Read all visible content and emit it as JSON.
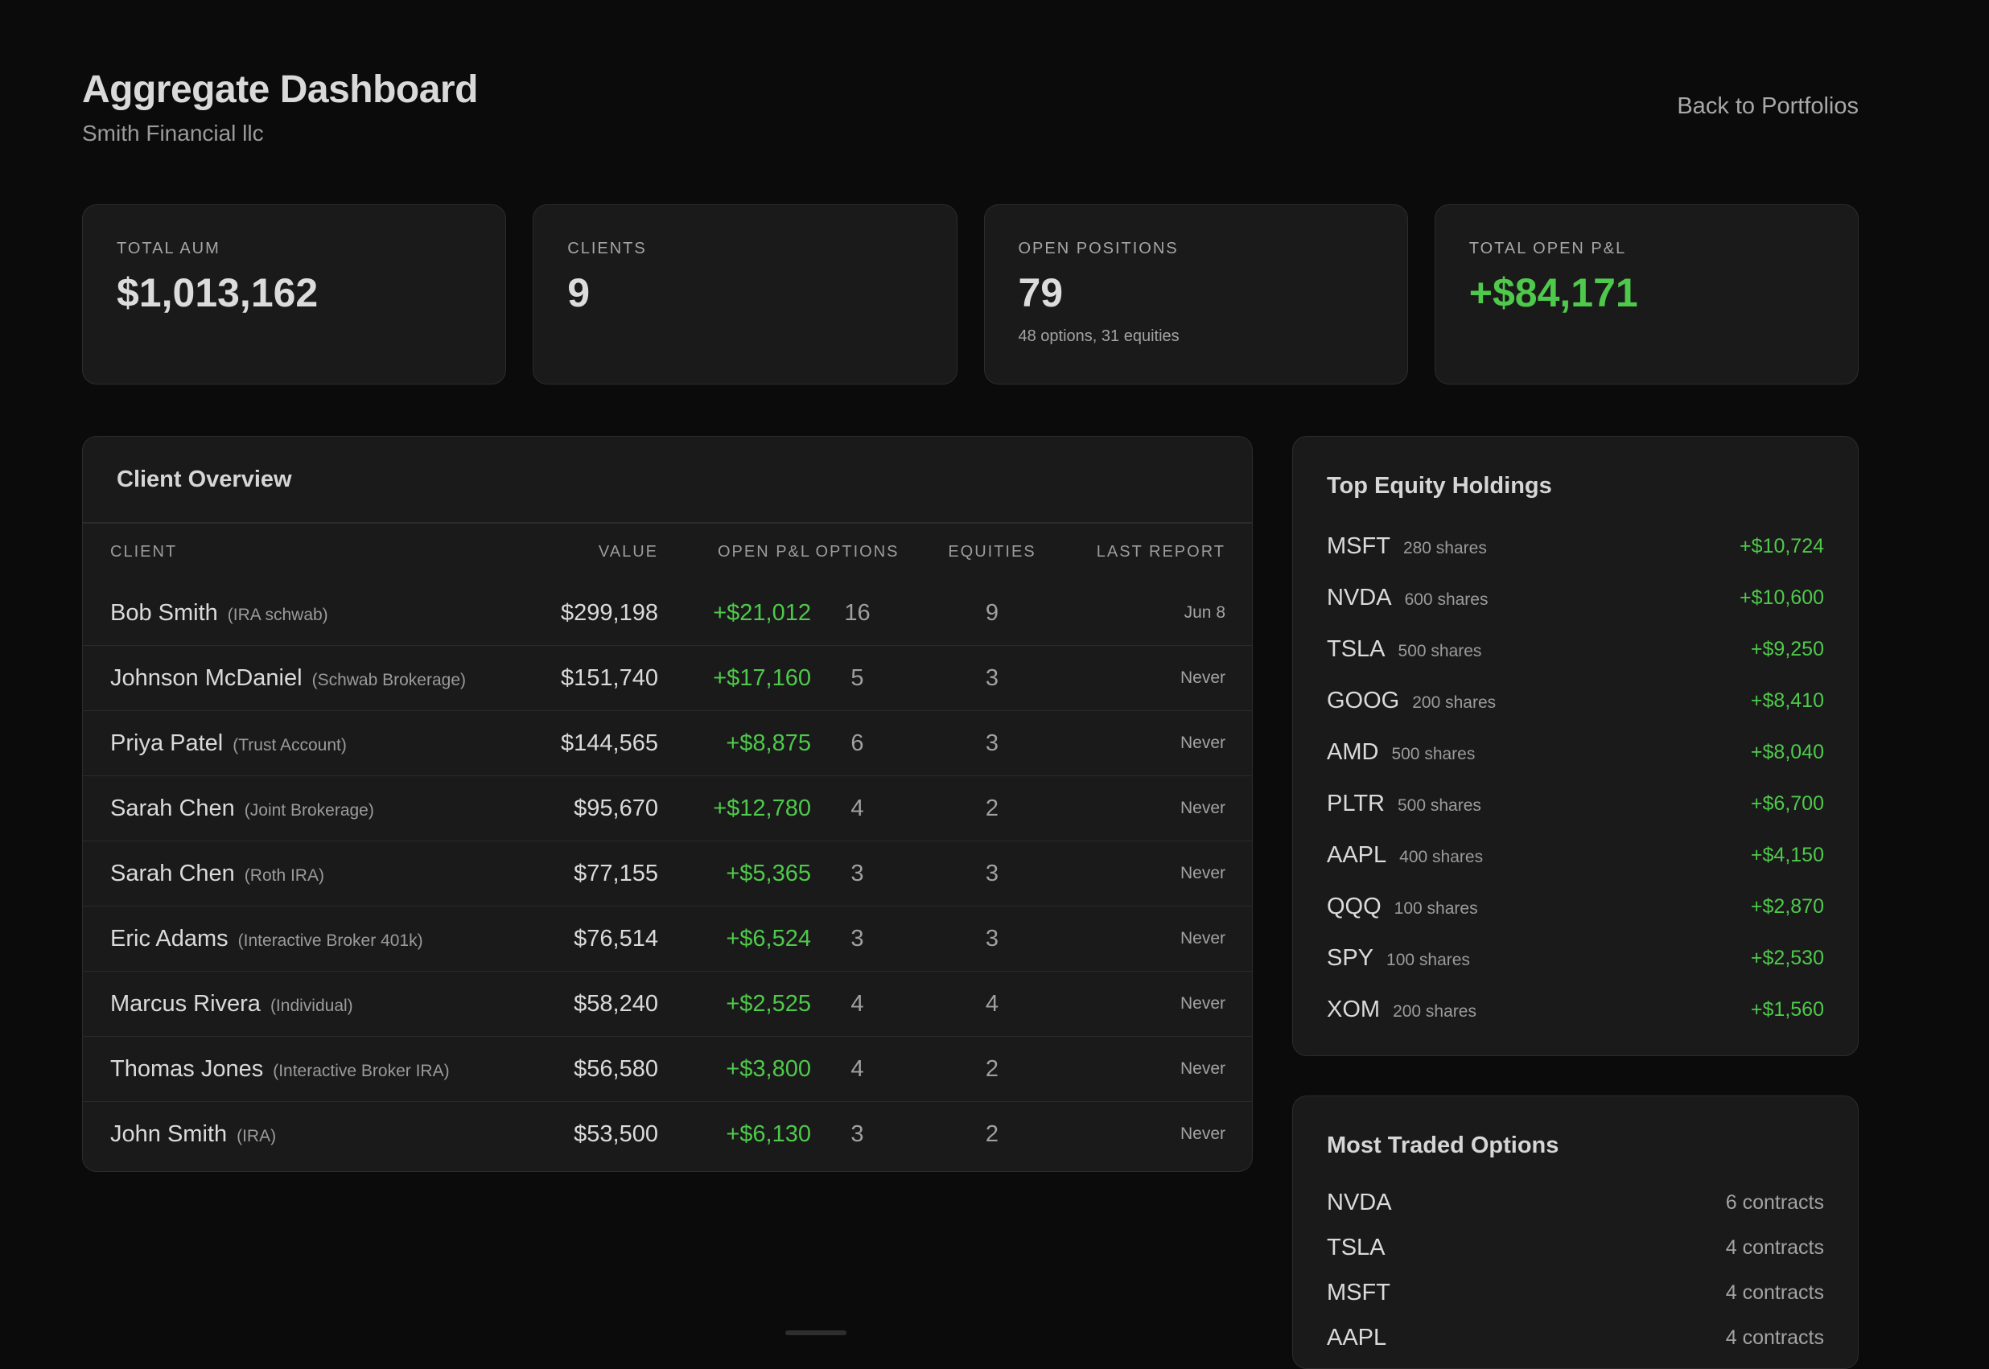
{
  "header": {
    "title": "Aggregate Dashboard",
    "subtitle": "Smith Financial llc",
    "back_link": "Back to Portfolios"
  },
  "stats": [
    {
      "label": "TOTAL AUM",
      "value": "$1,013,162",
      "sub": ""
    },
    {
      "label": "CLIENTS",
      "value": "9",
      "sub": ""
    },
    {
      "label": "OPEN POSITIONS",
      "value": "79",
      "sub": "48 options, 31 equities"
    },
    {
      "label": "TOTAL OPEN P&L",
      "value": "+$84,171",
      "sub": ""
    }
  ],
  "overview": {
    "title": "Client Overview",
    "columns": [
      "CLIENT",
      "VALUE",
      "OPEN P&L",
      "OPTIONS",
      "EQUITIES",
      "LAST REPORT"
    ],
    "rows": [
      {
        "name": "Bob Smith",
        "account": "(IRA schwab)",
        "value": "$299,198",
        "pnl": "+$21,012",
        "options": "16",
        "equities": "9",
        "last_report": "Jun 8"
      },
      {
        "name": "Johnson McDaniel",
        "account": "(Schwab Brokerage)",
        "value": "$151,740",
        "pnl": "+$17,160",
        "options": "5",
        "equities": "3",
        "last_report": "Never"
      },
      {
        "name": "Priya Patel",
        "account": "(Trust Account)",
        "value": "$144,565",
        "pnl": "+$8,875",
        "options": "6",
        "equities": "3",
        "last_report": "Never"
      },
      {
        "name": "Sarah Chen",
        "account": "(Joint Brokerage)",
        "value": "$95,670",
        "pnl": "+$12,780",
        "options": "4",
        "equities": "2",
        "last_report": "Never"
      },
      {
        "name": "Sarah Chen",
        "account": "(Roth IRA)",
        "value": "$77,155",
        "pnl": "+$5,365",
        "options": "3",
        "equities": "3",
        "last_report": "Never"
      },
      {
        "name": "Eric Adams",
        "account": "(Interactive Broker 401k)",
        "value": "$76,514",
        "pnl": "+$6,524",
        "options": "3",
        "equities": "3",
        "last_report": "Never"
      },
      {
        "name": "Marcus Rivera",
        "account": "(Individual)",
        "value": "$58,240",
        "pnl": "+$2,525",
        "options": "4",
        "equities": "4",
        "last_report": "Never"
      },
      {
        "name": "Thomas Jones",
        "account": "(Interactive Broker IRA)",
        "value": "$56,580",
        "pnl": "+$3,800",
        "options": "4",
        "equities": "2",
        "last_report": "Never"
      },
      {
        "name": "John Smith",
        "account": "(IRA)",
        "value": "$53,500",
        "pnl": "+$6,130",
        "options": "3",
        "equities": "2",
        "last_report": "Never"
      }
    ]
  },
  "holdings": {
    "title": "Top Equity Holdings",
    "items": [
      {
        "symbol": "MSFT",
        "shares": "280 shares",
        "gain": "+$10,724"
      },
      {
        "symbol": "NVDA",
        "shares": "600 shares",
        "gain": "+$10,600"
      },
      {
        "symbol": "TSLA",
        "shares": "500 shares",
        "gain": "+$9,250"
      },
      {
        "symbol": "GOOG",
        "shares": "200 shares",
        "gain": "+$8,410"
      },
      {
        "symbol": "AMD",
        "shares": "500 shares",
        "gain": "+$8,040"
      },
      {
        "symbol": "PLTR",
        "shares": "500 shares",
        "gain": "+$6,700"
      },
      {
        "symbol": "AAPL",
        "shares": "400 shares",
        "gain": "+$4,150"
      },
      {
        "symbol": "QQQ",
        "shares": "100 shares",
        "gain": "+$2,870"
      },
      {
        "symbol": "SPY",
        "shares": "100 shares",
        "gain": "+$2,530"
      },
      {
        "symbol": "XOM",
        "shares": "200 shares",
        "gain": "+$1,560"
      }
    ]
  },
  "options": {
    "title": "Most Traded Options",
    "items": [
      {
        "symbol": "NVDA",
        "count": "6 contracts"
      },
      {
        "symbol": "TSLA",
        "count": "4 contracts"
      },
      {
        "symbol": "MSFT",
        "count": "4 contracts"
      },
      {
        "symbol": "AAPL",
        "count": "4 contracts"
      }
    ]
  },
  "colors": {
    "background": "#0b0b0b",
    "card": "#1a1a1a",
    "positive": "#4ec94b"
  }
}
